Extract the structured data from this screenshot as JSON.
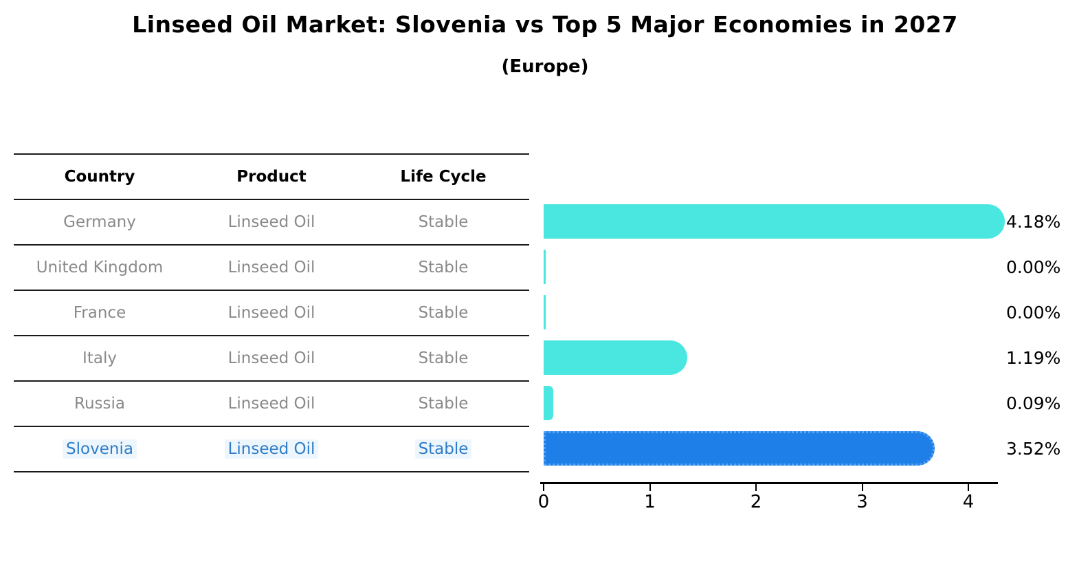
{
  "title": "Linseed Oil Market: Slovenia vs Top 5 Major Economies in 2027",
  "subtitle": "(Europe)",
  "table": {
    "headers": {
      "country": "Country",
      "product": "Product",
      "life_cycle": "Life Cycle"
    },
    "rows": [
      {
        "country": "Germany",
        "product": "Linseed Oil",
        "life_cycle": "Stable"
      },
      {
        "country": "United Kingdom",
        "product": "Linseed Oil",
        "life_cycle": "Stable"
      },
      {
        "country": "France",
        "product": "Linseed Oil",
        "life_cycle": "Stable"
      },
      {
        "country": "Italy",
        "product": "Linseed Oil",
        "life_cycle": "Stable"
      },
      {
        "country": "Russia",
        "product": "Linseed Oil",
        "life_cycle": "Stable"
      },
      {
        "country": "Slovenia",
        "product": "Linseed Oil",
        "life_cycle": "Stable"
      }
    ],
    "highlighted_row": "Slovenia"
  },
  "chart_data": {
    "type": "bar",
    "orientation": "horizontal",
    "categories": [
      "Germany",
      "United Kingdom",
      "France",
      "Italy",
      "Russia",
      "Slovenia"
    ],
    "values": [
      4.18,
      0.0,
      0.0,
      1.19,
      0.09,
      3.52
    ],
    "labels": [
      "4.18%",
      "0.00%",
      "0.00%",
      "1.19%",
      "0.09%",
      "3.52%"
    ],
    "x_ticks": [
      "0",
      "1",
      "2",
      "3",
      "4"
    ],
    "xlim": [
      0,
      4.3
    ],
    "grid": false,
    "legend": "none",
    "bar_color": "#4ae7e1",
    "highlight_color": "#1e7fe8",
    "highlight_index": 5,
    "highlight_border_style": "dotted"
  },
  "colors": {
    "title_text": "#000000",
    "table_text": "#8a8a8a",
    "highlight_text": "#2e7cc8",
    "rule": "#1a1a1a",
    "value_label_text": "#000000"
  }
}
